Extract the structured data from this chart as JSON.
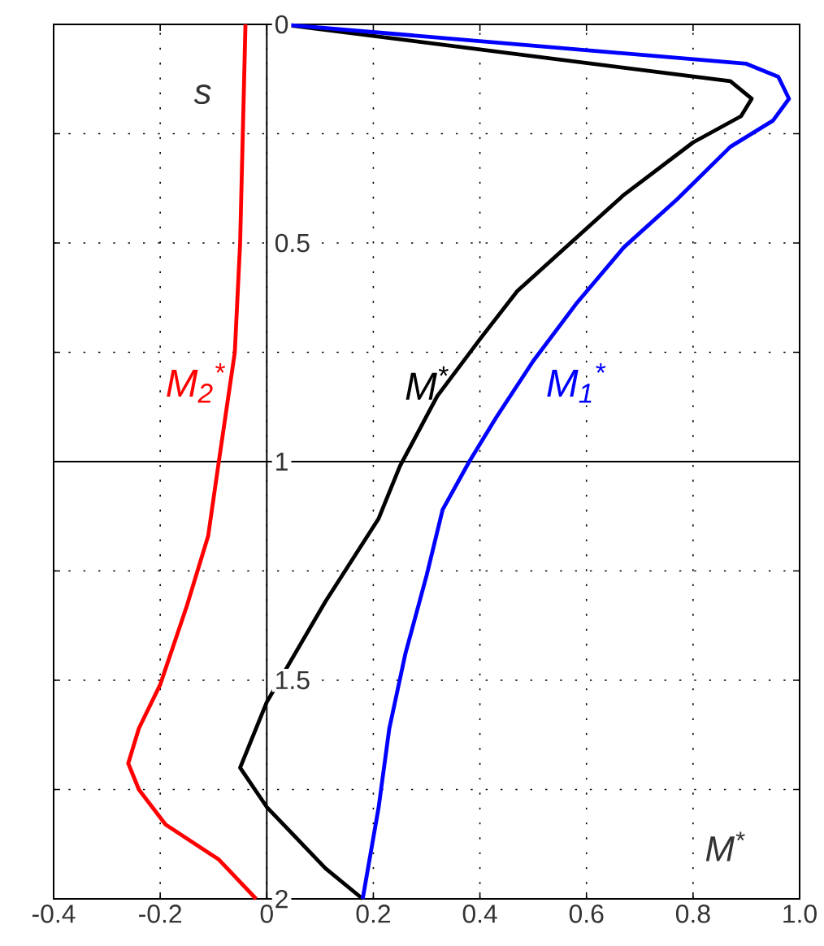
{
  "chart_data": {
    "type": "line",
    "xlabel": "M$^{*}$",
    "ylabel": "s",
    "xlim": [
      -0.4,
      1.0
    ],
    "xticks": [
      -0.4,
      -0.2,
      0,
      0.2,
      0.4,
      0.6,
      0.8,
      {
        "value": 1.0,
        "label": "1.0"
      }
    ],
    "ylim": [
      2,
      0
    ],
    "yticks": [
      0,
      {
        "value": 0.25,
        "label": null
      },
      0.5,
      {
        "value": 0.75,
        "label": null
      },
      1,
      {
        "value": 1.25,
        "label": null
      },
      1.5,
      {
        "value": 1.75,
        "label": null
      },
      2
    ],
    "grid": true,
    "legend": false,
    "marker": "none",
    "line_style": "solid",
    "ref_lines": [
      {
        "axis": "y",
        "value": 1,
        "color": "#000000"
      }
    ],
    "series": [
      {
        "name": "M$_{2}$$^{*}$",
        "color": "#ff0000",
        "x": [
          -0.04,
          -0.05,
          -0.06,
          -0.09,
          -0.11,
          -0.15,
          -0.2,
          -0.24,
          -0.26,
          -0.24,
          -0.19,
          -0.09,
          -0.02
        ],
        "values": [
          0,
          0.5,
          0.75,
          1.0,
          1.17,
          1.33,
          1.51,
          1.61,
          1.69,
          1.75,
          1.83,
          1.91,
          2.0
        ]
      },
      {
        "name": "M$^{*}$",
        "color": "#000000",
        "x": [
          0.03,
          0.87,
          0.91,
          0.89,
          0.8,
          0.67,
          0.57,
          0.47,
          0.4,
          0.32,
          0.25,
          0.21,
          0.11,
          0.0,
          -0.05,
          0.0,
          0.11,
          0.18
        ],
        "values": [
          0,
          0.13,
          0.17,
          0.21,
          0.27,
          0.39,
          0.5,
          0.61,
          0.72,
          0.85,
          1.01,
          1.13,
          1.32,
          1.55,
          1.7,
          1.79,
          1.93,
          2.0
        ]
      },
      {
        "name": "M$_{1}$$^{*}$",
        "color": "#0000ff",
        "x": [
          0.03,
          0.9,
          0.96,
          0.98,
          0.95,
          0.87,
          0.77,
          0.67,
          0.58,
          0.5,
          0.43,
          0.38,
          0.33,
          0.3,
          0.26,
          0.23,
          0.21,
          0.18
        ],
        "values": [
          0,
          0.09,
          0.12,
          0.17,
          0.22,
          0.28,
          0.4,
          0.51,
          0.64,
          0.77,
          0.9,
          1.0,
          1.11,
          1.26,
          1.44,
          1.61,
          1.79,
          2.0
        ]
      }
    ]
  }
}
